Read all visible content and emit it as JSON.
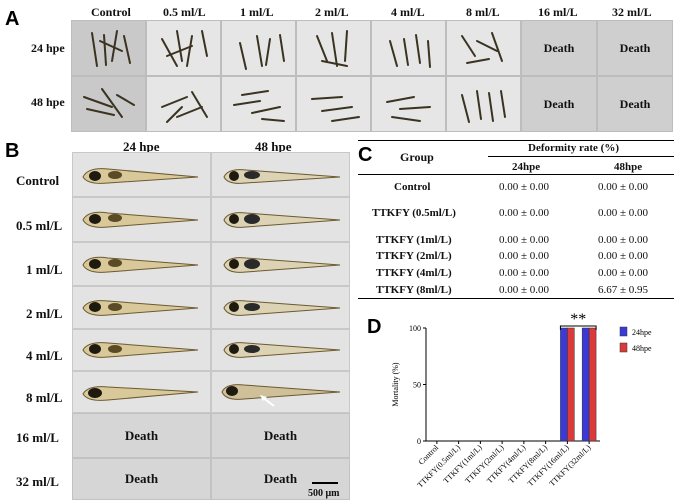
{
  "panels": {
    "a": "A",
    "b": "B",
    "c": "C",
    "d": "D"
  },
  "panel_a": {
    "columns": [
      "Control",
      "0.5 ml/L",
      "1 ml/L",
      "2 ml/L",
      "4 ml/L",
      "8 ml/L",
      "16 ml/L",
      "32 ml/L"
    ],
    "rows": [
      "24 hpe",
      "48 hpe"
    ],
    "death_text": "Death"
  },
  "panel_b": {
    "columns": [
      "24 hpe",
      "48 hpe"
    ],
    "rows": [
      "Control",
      "0.5 ml/L",
      "1 ml/L",
      "2 ml/L",
      "4 ml/L",
      "8 ml/L",
      "16 ml/L",
      "32 ml/L"
    ],
    "death_text": "Death",
    "scale_bar": "500 μm"
  },
  "panel_c": {
    "header_group": "Group",
    "header_rate": "Deformity rate (%)",
    "header_24": "24hpe",
    "header_48": "48hpe",
    "rows": [
      {
        "group": "Control",
        "h24": "0.00 ± 0.00",
        "h48": "0.00 ± 0.00"
      },
      {
        "group": "TTKFY  (0.5ml/L)",
        "h24": "0.00 ± 0.00",
        "h48": "0.00 ± 0.00"
      },
      {
        "group": "TTKFY  (1ml/L)",
        "h24": "0.00 ± 0.00",
        "h48": "0.00 ± 0.00"
      },
      {
        "group": "TTKFY  (2ml/L)",
        "h24": "0.00 ± 0.00",
        "h48": "0.00 ± 0.00"
      },
      {
        "group": "TTKFY  (4ml/L)",
        "h24": "0.00 ± 0.00",
        "h48": "0.00 ± 0.00"
      },
      {
        "group": "TTKFY  (8ml/L)",
        "h24": "0.00 ± 0.00",
        "h48": "6.67 ± 0.95"
      }
    ]
  },
  "chart_data": {
    "type": "bar",
    "categories": [
      "Control",
      "TTKFY(0.5ml/L)",
      "TTKFY(1ml/L)",
      "TTKFY(2ml/L)",
      "TTKFY(4ml/L)",
      "TTKFY(8ml/L)",
      "TTKFY(16ml/L)",
      "TTKFY(32ml/L)"
    ],
    "series": [
      {
        "name": "24hpe",
        "color": "#3a3ad6",
        "values": [
          0,
          0,
          0,
          0,
          0,
          0,
          100,
          100
        ]
      },
      {
        "name": "48hpe",
        "color": "#d93a3a",
        "values": [
          0,
          0,
          0,
          0,
          0,
          0,
          100,
          100
        ]
      }
    ],
    "ylabel": "Mortality (%)",
    "ylim": [
      0,
      100
    ],
    "yticks": [
      "0",
      "50",
      "100"
    ],
    "annotation": "**",
    "legend": "top-right"
  }
}
